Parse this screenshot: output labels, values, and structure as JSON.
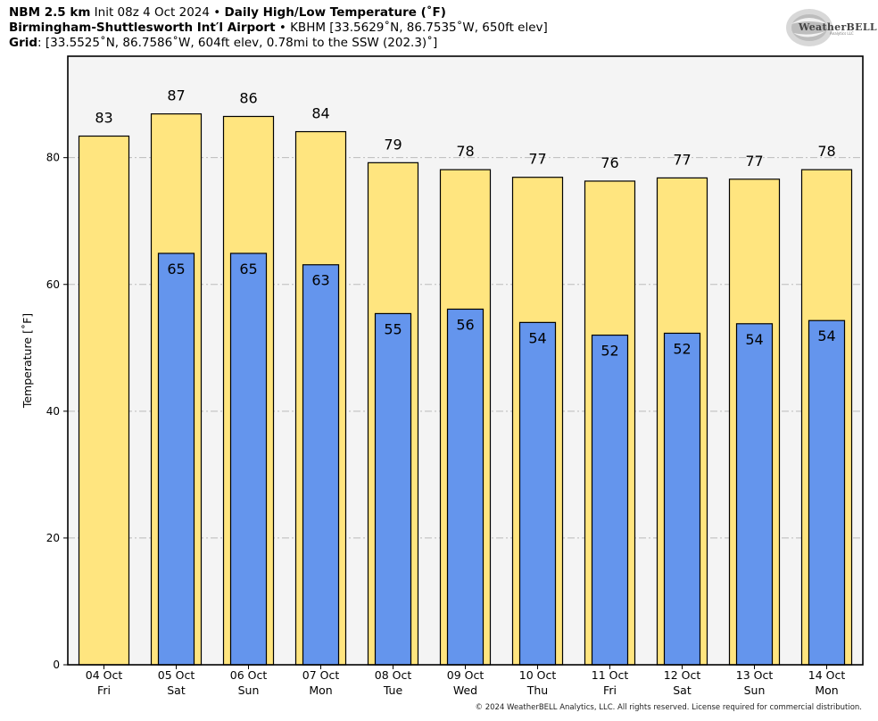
{
  "header": {
    "line1_bold_a": "NBM 2.5 km",
    "line1_plain": " Init 08z 4 Oct 2024 • ",
    "line1_bold_b": "Daily High/Low Temperature (˚F)",
    "line2_bold": "Birmingham-Shuttlesworth Int′l Airport",
    "line2_plain": " • KBHM [33.5629˚N, 86.7535˚W, 650ft elev]",
    "line3_bold": "Grid",
    "line3_plain": ": [33.5525˚N, 86.7586˚W, 604ft elev, 0.78mi to the SSW (202.3)˚]"
  },
  "logo": {
    "text": "WeatherBELL",
    "subtext": "Analytics LLC"
  },
  "footer": "© 2024 WeatherBELL Analytics, LLC. All rights reserved. License required for commercial distribution.",
  "colors": {
    "high": "#ffe57f",
    "low": "#6495ed",
    "plot_bg": "#f4f4f4",
    "grid": "#bbbbbb"
  },
  "chart_data": {
    "type": "bar",
    "title": "Daily High/Low Temperature (˚F)",
    "ylabel": "Temperature [˚F]",
    "xlabel": "",
    "ylim": [
      0,
      96
    ],
    "yticks": [
      0,
      20,
      40,
      60,
      80
    ],
    "grid": "horizontal dash-dot",
    "categories": [
      {
        "date": "04 Oct",
        "day": "Fri"
      },
      {
        "date": "05 Oct",
        "day": "Sat"
      },
      {
        "date": "06 Oct",
        "day": "Sun"
      },
      {
        "date": "07 Oct",
        "day": "Mon"
      },
      {
        "date": "08 Oct",
        "day": "Tue"
      },
      {
        "date": "09 Oct",
        "day": "Wed"
      },
      {
        "date": "10 Oct",
        "day": "Thu"
      },
      {
        "date": "11 Oct",
        "day": "Fri"
      },
      {
        "date": "12 Oct",
        "day": "Sat"
      },
      {
        "date": "13 Oct",
        "day": "Sun"
      },
      {
        "date": "14 Oct",
        "day": "Mon"
      }
    ],
    "series": [
      {
        "name": "High",
        "values": [
          83.4,
          86.9,
          86.5,
          84.1,
          79.2,
          78.1,
          76.9,
          76.3,
          76.8,
          76.6,
          78.1
        ],
        "labels": [
          "83",
          "87",
          "86",
          "84",
          "79",
          "78",
          "77",
          "76",
          "77",
          "77",
          "78"
        ]
      },
      {
        "name": "Low",
        "values": [
          null,
          64.9,
          64.9,
          63.1,
          55.4,
          56.1,
          54.0,
          52.0,
          52.3,
          53.8,
          54.3
        ],
        "labels": [
          "",
          "65",
          "65",
          "63",
          "55",
          "56",
          "54",
          "52",
          "52",
          "54",
          "54"
        ]
      }
    ]
  }
}
